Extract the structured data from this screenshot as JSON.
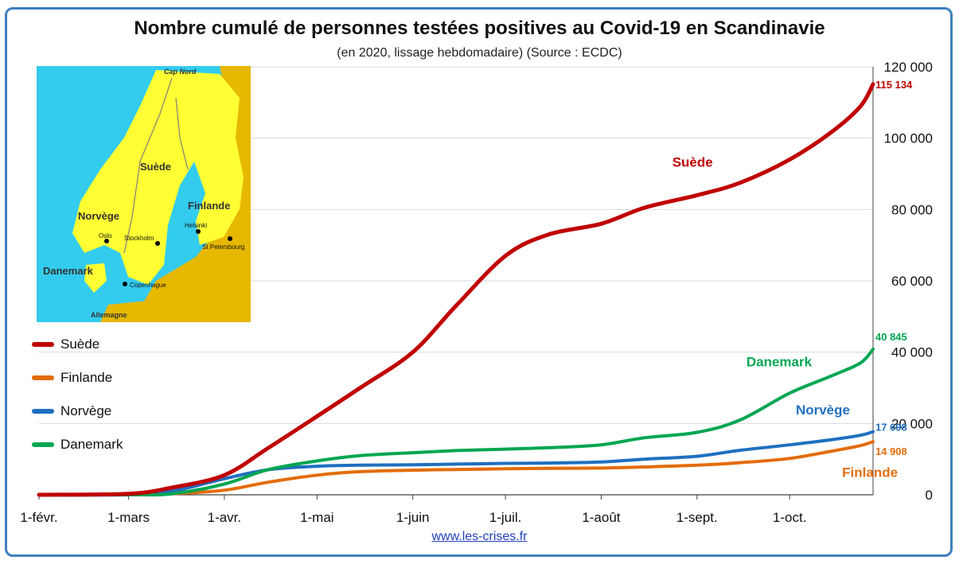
{
  "title": "Nombre cumulé de personnes testées positives au Covid-19 en Scandinavie",
  "subtitle": "(en 2020, lissage hebdomadaire) (Source : ECDC)",
  "footer_link": "www.les-crises.fr",
  "map": {
    "labels": {
      "cap_nord": "Cap Nord",
      "suede": "Suède",
      "finlande": "Finlande",
      "norvege": "Norvège",
      "danemark": "Danemark",
      "oslo": "Oslo",
      "stockholm": "Stockholm",
      "helsinki": "Helsinki",
      "st_petersbourg": "St Petersbourg",
      "copenhague": "Copenhague",
      "allemagne": "Allemagne"
    },
    "colors": {
      "sea": "#33ccee",
      "land": "#ffff33",
      "other_land": "#e6b800"
    }
  },
  "legend": [
    {
      "label": "Suède",
      "color": "#c00000"
    },
    {
      "label": "Finlande",
      "color": "#e46c0a"
    },
    {
      "label": "Norvège",
      "color": "#1f6fbf"
    },
    {
      "label": "Danemark",
      "color": "#00a651"
    }
  ],
  "chart_data": {
    "type": "line",
    "title": "Nombre cumulé de personnes testées positives au Covid-19 en Scandinavie",
    "subtitle": "(en 2020, lissage hebdomadaire) (Source : ECDC)",
    "xlabel": "",
    "ylabel": "",
    "x_ticks": [
      "1-févr.",
      "1-mars",
      "1-avr.",
      "1-mai",
      "1-juin",
      "1-juil.",
      "1-août",
      "1-sept.",
      "1-oct."
    ],
    "x_tick_dates": [
      "2020-02-01",
      "2020-03-01",
      "2020-04-01",
      "2020-05-01",
      "2020-06-01",
      "2020-07-01",
      "2020-08-01",
      "2020-09-01",
      "2020-10-01"
    ],
    "x_range": [
      "2020-02-01",
      "2020-10-28"
    ],
    "ylim": [
      0,
      120000
    ],
    "y_ticks": [
      0,
      20000,
      40000,
      60000,
      80000,
      100000,
      120000
    ],
    "y_tick_labels": [
      "0",
      "20 000",
      "40 000",
      "60 000",
      "80 000",
      "100 000",
      "120 000"
    ],
    "y_axis_side": "right",
    "grid": true,
    "legend_position": "left",
    "x": [
      "2020-02-01",
      "2020-03-01",
      "2020-03-15",
      "2020-04-01",
      "2020-04-15",
      "2020-05-01",
      "2020-05-15",
      "2020-06-01",
      "2020-06-15",
      "2020-07-01",
      "2020-07-15",
      "2020-08-01",
      "2020-08-15",
      "2020-09-01",
      "2020-09-15",
      "2020-10-01",
      "2020-10-15",
      "2020-10-24",
      "2020-10-28"
    ],
    "series": [
      {
        "name": "Suède",
        "color": "#c00000",
        "end_label": "115 134",
        "values": [
          0,
          300,
          2000,
          5500,
          13000,
          22000,
          30000,
          40000,
          53000,
          67000,
          73000,
          76000,
          80500,
          84000,
          87500,
          94000,
          102000,
          109000,
          115134
        ]
      },
      {
        "name": "Finlande",
        "color": "#e46c0a",
        "end_label": "14 908",
        "values": [
          0,
          0,
          300,
          1300,
          3500,
          5500,
          6500,
          6900,
          7100,
          7300,
          7400,
          7500,
          7800,
          8300,
          9000,
          10200,
          12300,
          13800,
          14908
        ]
      },
      {
        "name": "Norvège",
        "color": "#1f6fbf",
        "end_label": "17 698",
        "values": [
          0,
          0,
          1000,
          4500,
          7000,
          8000,
          8300,
          8400,
          8600,
          8800,
          8900,
          9200,
          10000,
          10800,
          12500,
          14000,
          15500,
          16700,
          17698
        ]
      },
      {
        "name": "Danemark",
        "color": "#00a651",
        "end_label": "40 845",
        "values": [
          0,
          0,
          300,
          3000,
          7000,
          9500,
          11000,
          11800,
          12400,
          12800,
          13200,
          14000,
          16000,
          17500,
          21000,
          28500,
          33500,
          37000,
          40845
        ]
      }
    ],
    "annotations": [
      {
        "text": "Suède",
        "color": "#c00000"
      },
      {
        "text": "Danemark",
        "color": "#00a651"
      },
      {
        "text": "Norvège",
        "color": "#1f6fbf"
      },
      {
        "text": "Finlande",
        "color": "#e46c0a"
      }
    ]
  }
}
